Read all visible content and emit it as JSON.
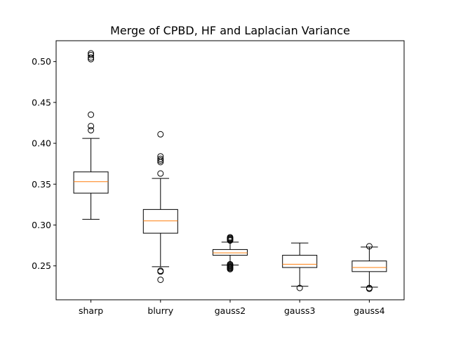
{
  "chart_data": {
    "type": "box",
    "title": "Merge of CPBD, HF and Laplacian Variance",
    "xlabel": "",
    "ylabel": "",
    "ylim": [
      0.2085,
      0.5255
    ],
    "yticks": [
      0.25,
      0.3,
      0.35,
      0.4,
      0.45,
      0.5
    ],
    "ytick_labels": [
      "0.25",
      "0.30",
      "0.35",
      "0.40",
      "0.45",
      "0.50"
    ],
    "grid": false,
    "colors": {
      "box": "#000000",
      "median": "#ff7f0e",
      "outlier": "#000000"
    },
    "categories": [
      "sharp",
      "blurry",
      "gauss2",
      "gauss3",
      "gauss4"
    ],
    "boxes": [
      {
        "label": "sharp",
        "whisker_low": 0.307,
        "q1": 0.339,
        "median": 0.353,
        "q3": 0.365,
        "whisker_high": 0.406,
        "outliers": [
          0.416,
          0.421,
          0.435,
          0.503,
          0.505,
          0.508,
          0.51
        ]
      },
      {
        "label": "blurry",
        "whisker_low": 0.249,
        "q1": 0.29,
        "median": 0.305,
        "q3": 0.319,
        "whisker_high": 0.357,
        "outliers": [
          0.233,
          0.243,
          0.244,
          0.363,
          0.377,
          0.379,
          0.381,
          0.384,
          0.411
        ]
      },
      {
        "label": "gauss2",
        "whisker_low": 0.251,
        "q1": 0.263,
        "median": 0.266,
        "q3": 0.27,
        "whisker_high": 0.279,
        "outliers": [
          0.246,
          0.247,
          0.248,
          0.249,
          0.25,
          0.251,
          0.252,
          0.281,
          0.282,
          0.283,
          0.284,
          0.285
        ]
      },
      {
        "label": "gauss3",
        "whisker_low": 0.225,
        "q1": 0.248,
        "median": 0.252,
        "q3": 0.263,
        "whisker_high": 0.278,
        "outliers": [
          0.223
        ]
      },
      {
        "label": "gauss4",
        "whisker_low": 0.224,
        "q1": 0.243,
        "median": 0.248,
        "q3": 0.256,
        "whisker_high": 0.273,
        "outliers": [
          0.222,
          0.223,
          0.274
        ]
      }
    ]
  }
}
